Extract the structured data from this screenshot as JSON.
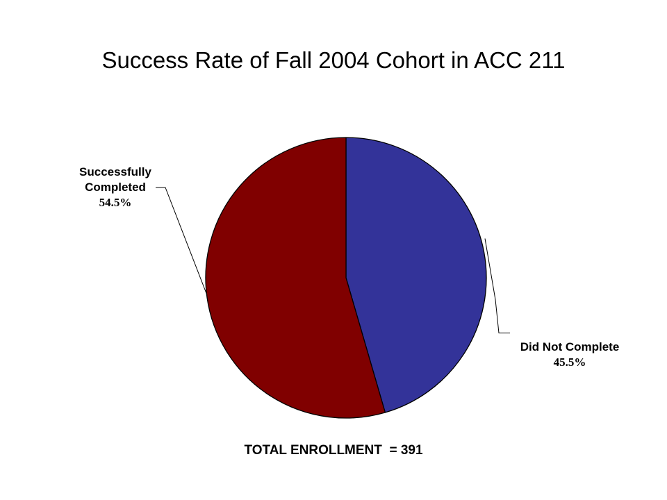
{
  "chart_data": {
    "type": "pie",
    "title": "Success Rate of Fall 2004 Cohort in ACC 211",
    "slices": [
      {
        "label": "Did Not Complete",
        "percent_label": "45.5%",
        "value": 45.5,
        "color": "#333399"
      },
      {
        "label": "Successfully Completed",
        "label_lines": [
          "Successfully",
          "Completed"
        ],
        "percent_label": "54.5%",
        "value": 54.5,
        "color": "#800000"
      }
    ],
    "start_angle_deg": 0,
    "direction": "clockwise",
    "footer": "TOTAL ENROLLMENT  = 391"
  }
}
